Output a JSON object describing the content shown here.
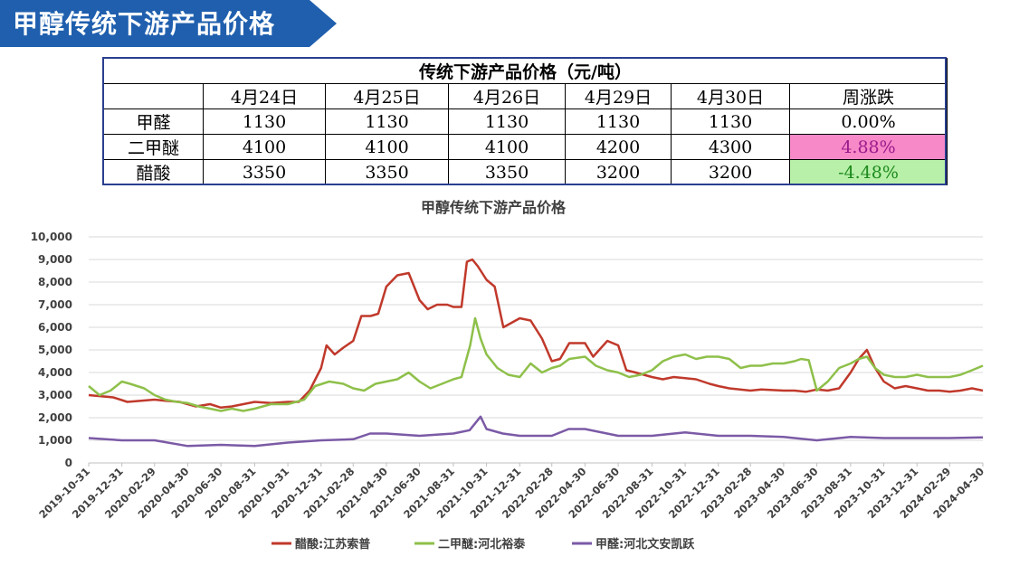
{
  "banner": {
    "title": "甲醇传统下游产品价格",
    "color": "#1f5fae"
  },
  "table": {
    "caption": "传统下游产品价格（元/吨）",
    "headers": [
      "",
      "4月24日",
      "4月25日",
      "4月26日",
      "4月29日",
      "4月30日",
      "周涨跌"
    ],
    "rows": [
      {
        "name": "甲醛",
        "values": [
          "1130",
          "1130",
          "1130",
          "1130",
          "1130"
        ],
        "change": "0.00%",
        "trend": "flat"
      },
      {
        "name": "二甲醚",
        "values": [
          "4100",
          "4100",
          "4100",
          "4200",
          "4300"
        ],
        "change": "4.88%",
        "trend": "up"
      },
      {
        "name": "醋酸",
        "values": [
          "3350",
          "3350",
          "3350",
          "3200",
          "3200"
        ],
        "change": "-4.48%",
        "trend": "down"
      }
    ]
  },
  "chart_data": {
    "type": "line",
    "title": "甲醇传统下游产品价格",
    "ylim": [
      0,
      10000
    ],
    "yticks": [
      "0",
      "1,000",
      "2,000",
      "3,000",
      "4,000",
      "5,000",
      "6,000",
      "7,000",
      "8,000",
      "9,000",
      "10,000"
    ],
    "xticks": [
      "2019-10-31",
      "2019-12-31",
      "2020-02-29",
      "2020-04-30",
      "2020-06-30",
      "2020-08-31",
      "2020-10-31",
      "2020-12-31",
      "2021-02-28",
      "2021-04-30",
      "2021-06-30",
      "2021-08-31",
      "2021-10-31",
      "2021-12-31",
      "2022-02-28",
      "2022-04-30",
      "2022-06-30",
      "2022-08-31",
      "2022-10-31",
      "2022-12-31",
      "2023-02-28",
      "2023-04-30",
      "2023-06-30",
      "2023-08-31",
      "2023-10-31",
      "2023-12-31",
      "2024-02-29",
      "2024-04-30"
    ],
    "grid": true,
    "legend_position": "bottom",
    "series": [
      {
        "name": "醋酸:江苏索普",
        "color": "#c0392b",
        "x": [
          "2019-10-31",
          "2019-12-15",
          "2020-01-10",
          "2020-02-29",
          "2020-03-20",
          "2020-04-15",
          "2020-05-15",
          "2020-06-10",
          "2020-06-30",
          "2020-07-20",
          "2020-08-31",
          "2020-09-30",
          "2020-10-31",
          "2020-11-20",
          "2020-12-10",
          "2020-12-31",
          "2021-01-10",
          "2021-01-25",
          "2021-02-10",
          "2021-02-28",
          "2021-03-15",
          "2021-04-01",
          "2021-04-15",
          "2021-04-30",
          "2021-05-20",
          "2021-06-10",
          "2021-06-30",
          "2021-07-15",
          "2021-08-01",
          "2021-08-20",
          "2021-08-31",
          "2021-09-15",
          "2021-09-25",
          "2021-10-05",
          "2021-10-15",
          "2021-10-31",
          "2021-11-15",
          "2021-12-01",
          "2021-12-31",
          "2022-01-20",
          "2022-02-10",
          "2022-02-28",
          "2022-03-15",
          "2022-04-01",
          "2022-04-30",
          "2022-05-15",
          "2022-06-10",
          "2022-06-30",
          "2022-07-15",
          "2022-08-01",
          "2022-08-31",
          "2022-09-20",
          "2022-10-10",
          "2022-10-31",
          "2022-11-20",
          "2022-12-15",
          "2022-12-31",
          "2023-01-20",
          "2023-02-28",
          "2023-03-20",
          "2023-04-30",
          "2023-05-20",
          "2023-06-10",
          "2023-06-30",
          "2023-07-20",
          "2023-08-10",
          "2023-08-31",
          "2023-09-15",
          "2023-09-30",
          "2023-10-15",
          "2023-10-31",
          "2023-11-20",
          "2023-12-10",
          "2023-12-31",
          "2024-01-20",
          "2024-02-10",
          "2024-02-29",
          "2024-03-20",
          "2024-04-10",
          "2024-04-30"
        ],
        "y": [
          3000,
          2900,
          2700,
          2800,
          2750,
          2700,
          2500,
          2600,
          2450,
          2500,
          2700,
          2650,
          2700,
          2700,
          3200,
          4200,
          5200,
          4800,
          5100,
          5400,
          6500,
          6500,
          6600,
          7800,
          8300,
          8400,
          7200,
          6800,
          7000,
          7000,
          6900,
          6900,
          8900,
          9000,
          8700,
          8100,
          7800,
          6000,
          6400,
          6300,
          5500,
          4500,
          4600,
          5300,
          5300,
          4700,
          5400,
          5200,
          4100,
          4000,
          3800,
          3700,
          3800,
          3750,
          3700,
          3500,
          3400,
          3300,
          3200,
          3250,
          3200,
          3200,
          3150,
          3250,
          3200,
          3300,
          4000,
          4600,
          5000,
          4200,
          3600,
          3300,
          3400,
          3300,
          3200,
          3200,
          3150,
          3200,
          3300,
          3200
        ]
      },
      {
        "name": "二甲醚:河北裕泰",
        "color": "#8ec04a",
        "x": [
          "2019-10-31",
          "2019-11-20",
          "2019-12-10",
          "2019-12-31",
          "2020-01-15",
          "2020-02-10",
          "2020-02-29",
          "2020-03-20",
          "2020-04-10",
          "2020-04-30",
          "2020-05-20",
          "2020-06-10",
          "2020-06-30",
          "2020-07-20",
          "2020-08-10",
          "2020-08-31",
          "2020-09-30",
          "2020-10-31",
          "2020-11-30",
          "2020-12-20",
          "2021-01-15",
          "2021-02-10",
          "2021-02-28",
          "2021-03-20",
          "2021-04-10",
          "2021-04-30",
          "2021-05-20",
          "2021-06-10",
          "2021-06-30",
          "2021-07-20",
          "2021-08-10",
          "2021-08-31",
          "2021-09-15",
          "2021-10-01",
          "2021-10-10",
          "2021-10-20",
          "2021-10-31",
          "2021-11-20",
          "2021-12-10",
          "2021-12-31",
          "2022-01-20",
          "2022-02-10",
          "2022-02-28",
          "2022-03-15",
          "2022-04-01",
          "2022-04-30",
          "2022-05-20",
          "2022-06-10",
          "2022-06-30",
          "2022-07-20",
          "2022-08-10",
          "2022-08-31",
          "2022-09-20",
          "2022-10-10",
          "2022-10-31",
          "2022-11-20",
          "2022-12-10",
          "2022-12-31",
          "2023-01-20",
          "2023-02-10",
          "2023-02-28",
          "2023-03-20",
          "2023-04-10",
          "2023-04-30",
          "2023-05-20",
          "2023-06-01",
          "2023-06-15",
          "2023-06-30",
          "2023-07-20",
          "2023-08-10",
          "2023-08-31",
          "2023-09-15",
          "2023-09-30",
          "2023-10-15",
          "2023-10-31",
          "2023-11-20",
          "2023-12-10",
          "2023-12-31",
          "2024-01-20",
          "2024-02-10",
          "2024-02-29",
          "2024-03-20",
          "2024-04-10",
          "2024-04-30"
        ],
        "y": [
          3400,
          3000,
          3200,
          3600,
          3500,
          3300,
          3000,
          2800,
          2700,
          2650,
          2500,
          2400,
          2300,
          2400,
          2300,
          2400,
          2600,
          2600,
          2800,
          3400,
          3600,
          3500,
          3300,
          3200,
          3500,
          3600,
          3700,
          4000,
          3600,
          3300,
          3500,
          3700,
          3800,
          5200,
          6400,
          5500,
          4800,
          4200,
          3900,
          3800,
          4400,
          4000,
          4200,
          4300,
          4600,
          4700,
          4300,
          4100,
          4000,
          3800,
          3900,
          4100,
          4500,
          4700,
          4800,
          4600,
          4700,
          4700,
          4600,
          4200,
          4300,
          4300,
          4400,
          4400,
          4500,
          4600,
          4550,
          3200,
          3600,
          4200,
          4400,
          4600,
          4700,
          4200,
          3900,
          3800,
          3800,
          3900,
          3800,
          3800,
          3800,
          3900,
          4100,
          4300
        ]
      },
      {
        "name": "甲醛:河北文安凯跃",
        "color": "#7b5aa6",
        "x": [
          "2019-10-31",
          "2019-12-31",
          "2020-02-29",
          "2020-04-30",
          "2020-06-30",
          "2020-08-31",
          "2020-10-31",
          "2020-12-31",
          "2021-02-28",
          "2021-03-31",
          "2021-04-30",
          "2021-06-30",
          "2021-08-31",
          "2021-09-30",
          "2021-10-20",
          "2021-10-31",
          "2021-11-30",
          "2021-12-31",
          "2022-02-28",
          "2022-03-31",
          "2022-04-30",
          "2022-06-30",
          "2022-08-31",
          "2022-10-31",
          "2022-12-31",
          "2023-02-28",
          "2023-04-30",
          "2023-06-30",
          "2023-08-31",
          "2023-10-31",
          "2023-12-31",
          "2024-02-29",
          "2024-04-30"
        ],
        "y": [
          1100,
          1000,
          1000,
          750,
          800,
          750,
          900,
          1000,
          1050,
          1300,
          1300,
          1200,
          1300,
          1450,
          2050,
          1500,
          1300,
          1200,
          1200,
          1500,
          1500,
          1200,
          1200,
          1350,
          1200,
          1200,
          1150,
          1000,
          1150,
          1100,
          1100,
          1100,
          1130
        ]
      }
    ]
  }
}
